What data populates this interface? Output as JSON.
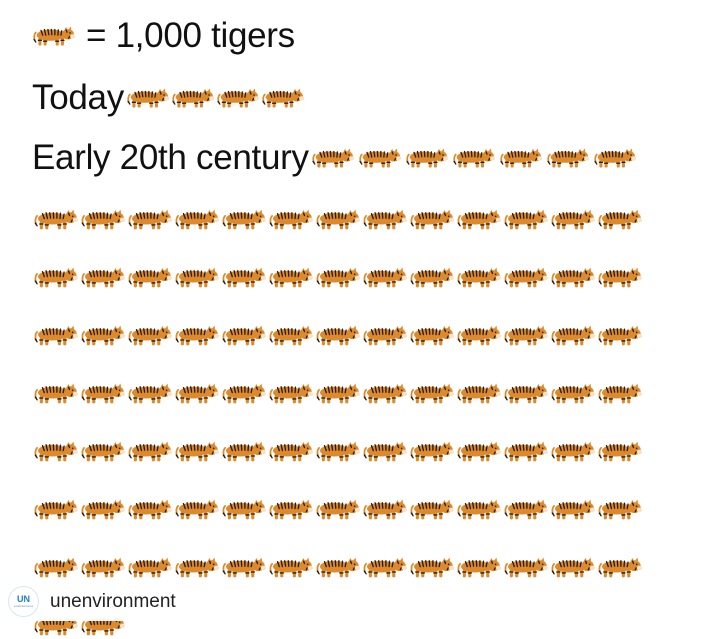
{
  "legend": {
    "equals_text": "= 1,000 tigers",
    "icon": "tiger-icon",
    "unit_value": 1000
  },
  "colors": {
    "tiger_orange": "#dd8a2c",
    "tiger_stripe": "#2a1a10",
    "text": "#111111",
    "un_blue": "#1f7fc7"
  },
  "chart_data": {
    "type": "pictogram",
    "unit_label": "= 1,000 tigers",
    "unit_value": 1000,
    "categories": [
      "Today",
      "Early 20th century"
    ],
    "values": [
      4000,
      100000
    ],
    "icon_counts": [
      4,
      100
    ]
  },
  "watermark": {
    "logo_text": "UN",
    "logo_subtext": "environment",
    "handle": "unenvironment"
  }
}
